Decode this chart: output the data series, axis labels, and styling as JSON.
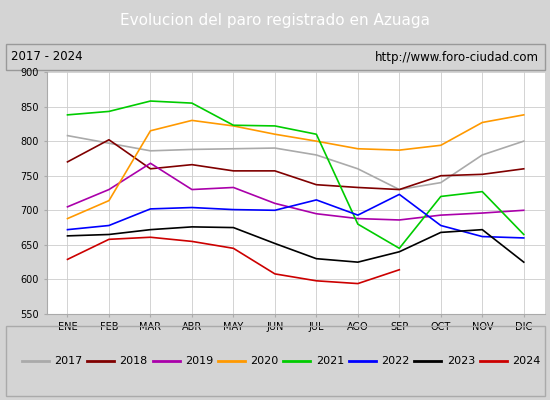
{
  "title": "Evolucion del paro registrado en Azuaga",
  "subtitle_left": "2017 - 2024",
  "subtitle_right": "http://www.foro-ciudad.com",
  "months": [
    "ENE",
    "FEB",
    "MAR",
    "ABR",
    "MAY",
    "JUN",
    "JUL",
    "AGO",
    "SEP",
    "OCT",
    "NOV",
    "DIC"
  ],
  "ylim": [
    550,
    900
  ],
  "yticks": [
    550,
    600,
    650,
    700,
    750,
    800,
    850,
    900
  ],
  "series": {
    "2017": {
      "color": "#aaaaaa",
      "values": [
        808,
        797,
        786,
        788,
        789,
        790,
        780,
        760,
        730,
        740,
        780,
        800
      ]
    },
    "2018": {
      "color": "#800000",
      "values": [
        770,
        802,
        760,
        766,
        757,
        757,
        737,
        733,
        730,
        750,
        752,
        760
      ]
    },
    "2019": {
      "color": "#aa00aa",
      "values": [
        705,
        730,
        768,
        730,
        733,
        710,
        695,
        688,
        686,
        693,
        696,
        700
      ]
    },
    "2020": {
      "color": "#ff9900",
      "values": [
        688,
        714,
        815,
        830,
        822,
        810,
        800,
        789,
        787,
        794,
        827,
        838
      ]
    },
    "2021": {
      "color": "#00cc00",
      "values": [
        838,
        843,
        858,
        855,
        823,
        822,
        810,
        680,
        645,
        720,
        727,
        665
      ]
    },
    "2022": {
      "color": "#0000ff",
      "values": [
        672,
        678,
        702,
        704,
        701,
        700,
        715,
        693,
        723,
        678,
        662,
        660
      ]
    },
    "2023": {
      "color": "#000000",
      "values": [
        663,
        665,
        672,
        676,
        675,
        652,
        630,
        625,
        640,
        668,
        672,
        625
      ]
    },
    "2024": {
      "color": "#cc0000",
      "values": [
        629,
        658,
        661,
        655,
        645,
        608,
        598,
        594,
        614,
        null,
        null,
        null
      ]
    }
  },
  "bg_color": "#d4d4d4",
  "plot_bg_color": "#ffffff",
  "title_bg_color": "#4f81bd",
  "title_text_color": "#ffffff",
  "subtitle_bg_color": "#e0e0e0",
  "grid_color": "#cccccc",
  "legend_bg_color": "#f0f0f0"
}
